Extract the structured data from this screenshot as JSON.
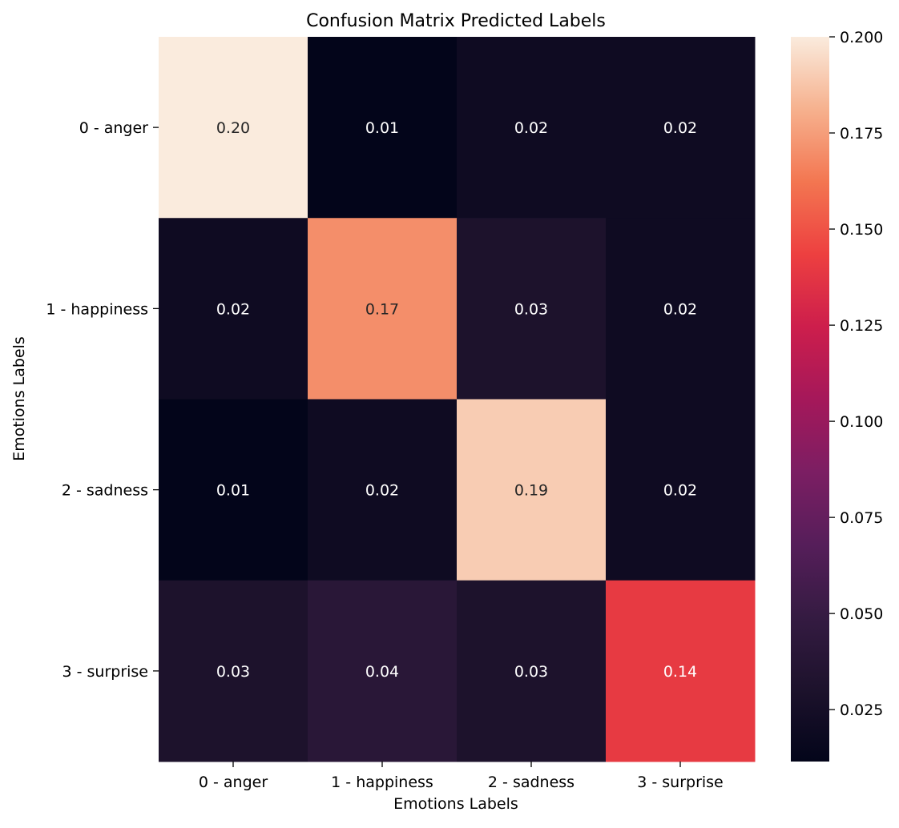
{
  "chart_data": {
    "type": "heatmap",
    "title": "Confusion Matrix Predicted Labels",
    "xlabel": "Emotions Labels",
    "ylabel": "Emotions Labels",
    "x_categories": [
      "0 - anger",
      "1 - happiness",
      "2 - sadness",
      "3 - surprise"
    ],
    "y_categories": [
      "0 - anger",
      "1 - happiness",
      "2 - sadness",
      "3 - surprise"
    ],
    "values": [
      [
        0.2,
        0.01,
        0.02,
        0.02
      ],
      [
        0.02,
        0.17,
        0.03,
        0.02
      ],
      [
        0.01,
        0.02,
        0.19,
        0.02
      ],
      [
        0.03,
        0.04,
        0.03,
        0.14
      ]
    ],
    "value_labels": [
      [
        "0.20",
        "0.01",
        "0.02",
        "0.02"
      ],
      [
        "0.02",
        "0.17",
        "0.03",
        "0.02"
      ],
      [
        "0.01",
        "0.02",
        "0.19",
        "0.02"
      ],
      [
        "0.03",
        "0.04",
        "0.03",
        "0.14"
      ]
    ],
    "colorbar": {
      "range": [
        0.0115,
        0.2
      ],
      "ticks": [
        0.025,
        0.05,
        0.075,
        0.1,
        0.125,
        0.15,
        0.175,
        0.2
      ],
      "tick_labels": [
        "0.025",
        "0.050",
        "0.075",
        "0.100",
        "0.125",
        "0.150",
        "0.175",
        "0.200"
      ],
      "colormap": "rocket",
      "placement": "right"
    },
    "grid": false
  }
}
